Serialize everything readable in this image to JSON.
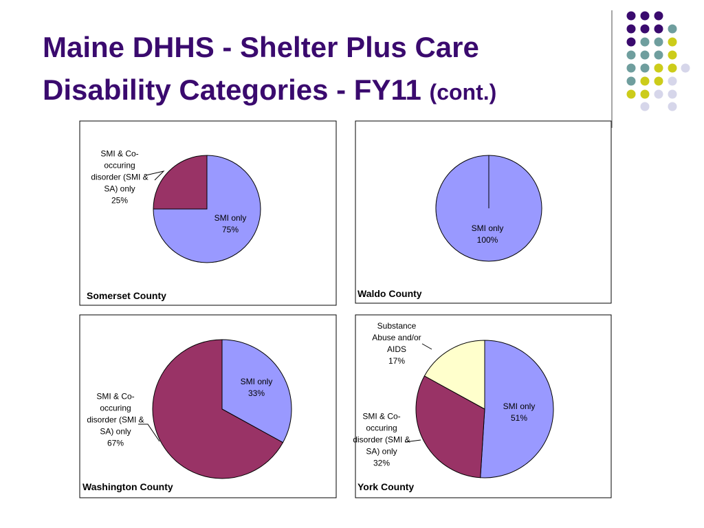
{
  "title": "Maine DHHS - Shelter Plus Care Disability Categories - FY11",
  "title_note": "(cont.)",
  "chart_data": [
    {
      "type": "pie",
      "title": "Somerset County",
      "categories": [
        "SMI only",
        "SMI & Co-occuring disorder (SMI & SA) only"
      ],
      "values": [
        75,
        25
      ],
      "value_labels": [
        "75%",
        "25%"
      ],
      "colors": [
        "#9999ff",
        "#993366"
      ]
    },
    {
      "type": "pie",
      "title": "Waldo County",
      "categories": [
        "SMI only"
      ],
      "values": [
        100
      ],
      "value_labels": [
        "100%"
      ],
      "colors": [
        "#9999ff"
      ]
    },
    {
      "type": "pie",
      "title": "Washington County",
      "categories": [
        "SMI only",
        "SMI & Co-occuring disorder (SMI & SA) only"
      ],
      "values": [
        33,
        67
      ],
      "value_labels": [
        "33%",
        "67%"
      ],
      "colors": [
        "#9999ff",
        "#993366"
      ]
    },
    {
      "type": "pie",
      "title": "York County",
      "categories": [
        "SMI only",
        "SMI & Co-occuring disorder (SMI & SA) only",
        "Substance Abuse and/or AIDS"
      ],
      "values": [
        51,
        32,
        17
      ],
      "value_labels": [
        "51%",
        "32%",
        "17%"
      ],
      "colors": [
        "#9999ff",
        "#993366",
        "#ffffcc"
      ]
    }
  ]
}
